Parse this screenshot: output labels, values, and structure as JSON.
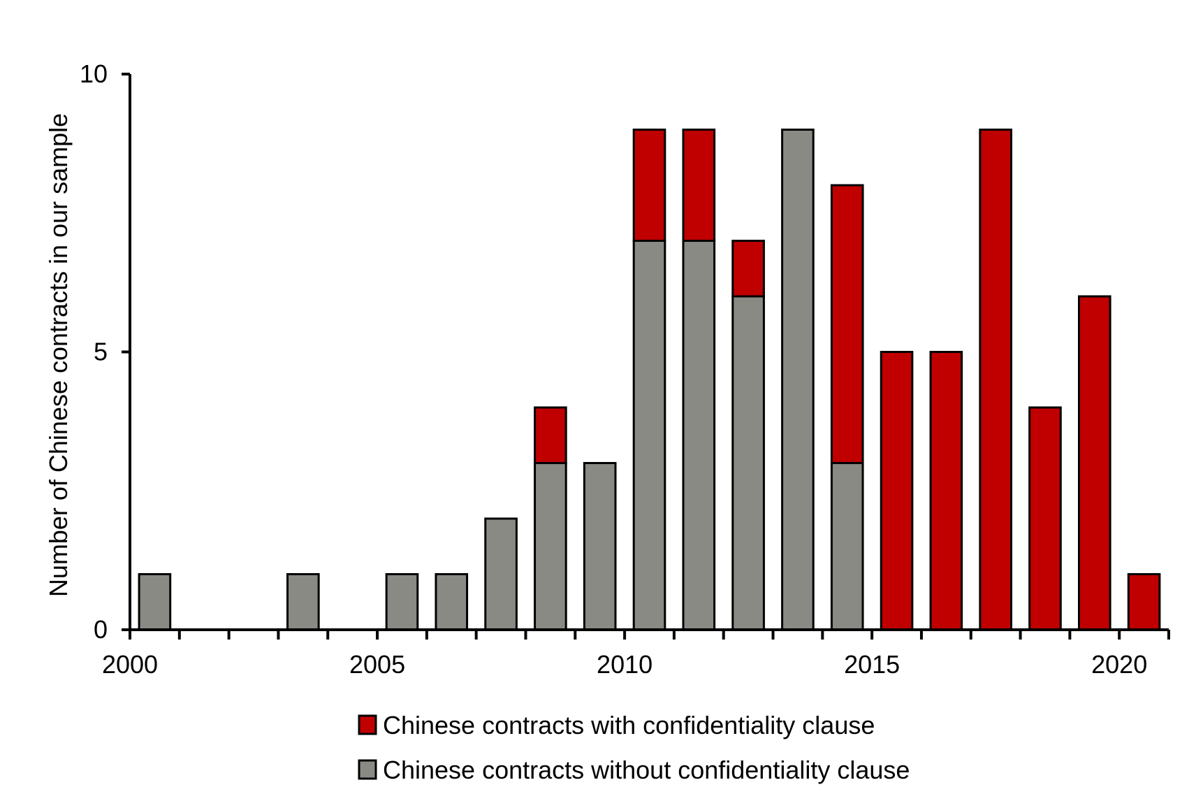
{
  "chart_data": {
    "type": "bar",
    "stacked": true,
    "title": "",
    "xlabel": "",
    "ylabel": "Number of Chinese contracts in our sample",
    "ylim": [
      0,
      10
    ],
    "y_ticks": [
      0,
      5,
      10
    ],
    "x_ticks": [
      2000,
      2005,
      2010,
      2015,
      2020
    ],
    "grid": false,
    "legend_position": "bottom",
    "categories": [
      2000,
      2001,
      2002,
      2003,
      2004,
      2005,
      2006,
      2007,
      2008,
      2009,
      2010,
      2011,
      2012,
      2013,
      2014,
      2015,
      2016,
      2017,
      2018,
      2019,
      2020
    ],
    "series": [
      {
        "name": "Chinese contracts without confidentiality clause",
        "color": "#8a8a85",
        "values": [
          1,
          0,
          0,
          1,
          0,
          1,
          1,
          2,
          3,
          3,
          7,
          7,
          6,
          9,
          3,
          0,
          0,
          0,
          0,
          0,
          0
        ]
      },
      {
        "name": "Chinese contracts with confidentiality clause",
        "color": "#c00000",
        "values": [
          0,
          0,
          0,
          0,
          0,
          0,
          0,
          0,
          1,
          0,
          2,
          2,
          1,
          0,
          5,
          5,
          5,
          9,
          4,
          6,
          1
        ]
      }
    ],
    "legend_order": [
      1,
      0
    ]
  }
}
